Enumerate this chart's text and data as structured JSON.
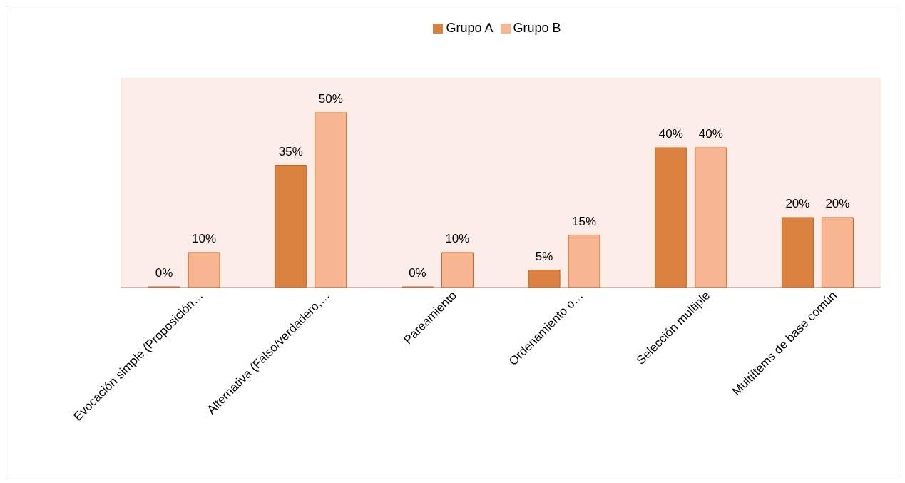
{
  "chart_data": {
    "type": "bar",
    "categories": [
      "Evocación simple (Proposición…",
      "Alternativa (Falso/verdadero,…",
      "Pareamiento",
      "Ordenamiento o…",
      "Selección múltiple",
      "Multiítems de base común"
    ],
    "series": [
      {
        "name": "Grupo A",
        "color": "#d9823f",
        "values": [
          0,
          35,
          0,
          5,
          40,
          20
        ],
        "value_labels": [
          "0%",
          "35%",
          "0%",
          "5%",
          "40%",
          "20%"
        ]
      },
      {
        "name": "Grupo B",
        "color": "#f8b592",
        "values": [
          10,
          50,
          10,
          15,
          40,
          20
        ],
        "value_labels": [
          "10%",
          "50%",
          "10%",
          "15%",
          "40%",
          "20%"
        ]
      }
    ],
    "legend": "top",
    "grid": false
  }
}
